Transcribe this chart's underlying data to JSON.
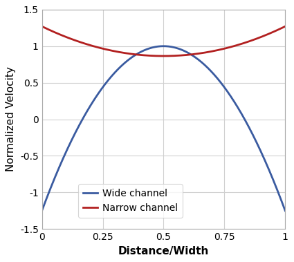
{
  "title": "",
  "xlabel": "Distance/Width",
  "ylabel": "Normalized Velocity",
  "xlim": [
    0,
    1
  ],
  "ylim": [
    -1.5,
    1.5
  ],
  "xticks": [
    0,
    0.25,
    0.5,
    0.75,
    1
  ],
  "yticks": [
    -1.5,
    -1.0,
    -0.5,
    0.0,
    0.5,
    1.0,
    1.5
  ],
  "wide_channel_color": "#3A5BA0",
  "narrow_channel_color": "#B22020",
  "wide_channel_label": "Wide channel",
  "narrow_channel_label": "Narrow channel",
  "line_width": 2.0,
  "background_color": "#ffffff",
  "grid_color": "#d0d0d0",
  "wide_peak": 1.0,
  "wide_wall": -1.25,
  "narrow_mid": 0.865,
  "narrow_wall": 1.27
}
